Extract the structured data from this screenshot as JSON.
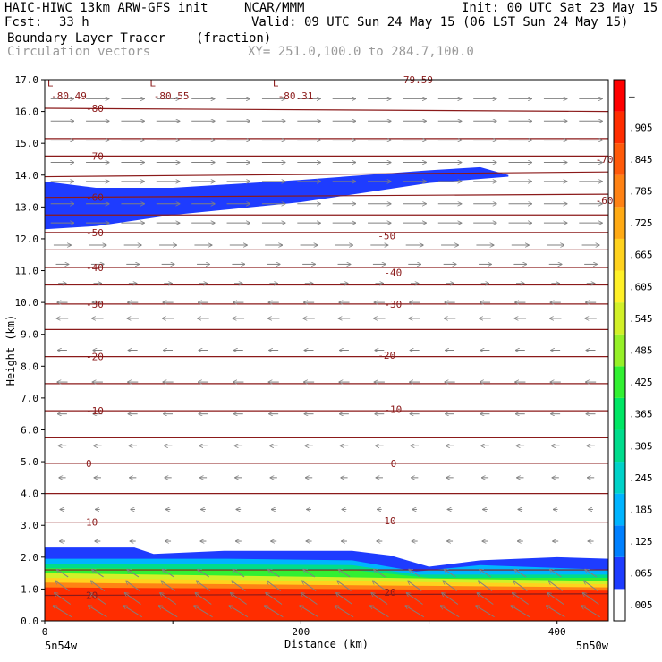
{
  "header": {
    "model": "HAIC-HIWC 13km ARW-GFS init",
    "org": "NCAR/MMM",
    "init": "Init: 00 UTC Sat 23 May 15",
    "fcst_label": "Fcst:",
    "fcst_value": "33 h",
    "valid": "Valid: 09 UTC Sun 24 May 15 (06 LST Sun 24 May 15)",
    "field": "Boundary Layer Tracer",
    "field_units": "(fraction)",
    "overlay": "Circulation vectors",
    "xsec": "XY= 251.0,100.0 to 284.7,100.0"
  },
  "chart_data": {
    "type": "heatmap",
    "xlabel": "Distance (km)",
    "ylabel": "Height (km)",
    "xlim": [
      0,
      440
    ],
    "ylim": [
      0,
      17
    ],
    "x_ticks": [
      "0",
      "200",
      "400"
    ],
    "y_ticks": [
      "0.0",
      "1.0",
      "2.0",
      "3.0",
      "4.0",
      "5.0",
      "6.0",
      "7.0",
      "8.0",
      "9.0",
      "10.0",
      "11.0",
      "12.0",
      "13.0",
      "14.0",
      "15.0",
      "16.0",
      "17.0"
    ],
    "left_endpoint": "5n54w",
    "right_endpoint": "5n50w",
    "colorbar": {
      "labels": [
        ".005",
        ".065",
        ".125",
        ".185",
        ".245",
        ".305",
        ".365",
        ".425",
        ".485",
        ".545",
        ".605",
        ".665",
        ".725",
        ".785",
        ".845",
        ".905",
        "–"
      ],
      "colors": [
        "#ffffff",
        "#1e3cff",
        "#0080ff",
        "#00b4ff",
        "#00d2c8",
        "#00dc8c",
        "#00e664",
        "#32f032",
        "#96f028",
        "#d2f028",
        "#fff028",
        "#ffd21e",
        "#ffaa14",
        "#ff8214",
        "#ff5a0a",
        "#ff2d00",
        "#ff0000"
      ]
    },
    "tracer_layers": [
      {
        "level": ".065",
        "color": "#1e3cff",
        "top": [
          [
            0,
            2.3
          ],
          [
            70,
            2.3
          ],
          [
            85,
            2.1
          ],
          [
            140,
            2.2
          ],
          [
            240,
            2.2
          ],
          [
            270,
            2.05
          ],
          [
            300,
            1.7
          ],
          [
            340,
            1.9
          ],
          [
            400,
            2.0
          ],
          [
            440,
            1.95
          ]
        ]
      },
      {
        "level": ".185",
        "color": "#00b4ff",
        "top": [
          [
            0,
            1.95
          ],
          [
            140,
            1.95
          ],
          [
            240,
            1.9
          ],
          [
            290,
            1.55
          ],
          [
            340,
            1.75
          ],
          [
            440,
            1.6
          ]
        ]
      },
      {
        "level": ".305",
        "color": "#00dc8c",
        "top": [
          [
            0,
            1.8
          ],
          [
            240,
            1.75
          ],
          [
            290,
            1.45
          ],
          [
            440,
            1.45
          ]
        ]
      },
      {
        "level": ".425",
        "color": "#32f032",
        "top": [
          [
            0,
            1.65
          ],
          [
            240,
            1.6
          ],
          [
            300,
            1.35
          ],
          [
            440,
            1.35
          ]
        ]
      },
      {
        "level": ".545",
        "color": "#d2f028",
        "top": [
          [
            0,
            1.5
          ],
          [
            440,
            1.25
          ]
        ]
      },
      {
        "level": ".665",
        "color": "#ffd21e",
        "top": [
          [
            0,
            1.35
          ],
          [
            440,
            1.15
          ]
        ]
      },
      {
        "level": ".785",
        "color": "#ff8214",
        "top": [
          [
            0,
            1.2
          ],
          [
            440,
            1.05
          ]
        ]
      },
      {
        "level": ".905",
        "color": "#ff2d00",
        "top": [
          [
            0,
            1.05
          ],
          [
            440,
            0.95
          ]
        ]
      }
    ],
    "upper_plume": {
      "level": ".065",
      "color": "#1e3cff",
      "top": [
        [
          0,
          13.8
        ],
        [
          40,
          13.6
        ],
        [
          100,
          13.6
        ],
        [
          200,
          13.85
        ],
        [
          300,
          14.15
        ],
        [
          340,
          14.25
        ],
        [
          362,
          14.0
        ]
      ],
      "bottom": [
        [
          362,
          13.95
        ],
        [
          300,
          13.75
        ],
        [
          200,
          13.15
        ],
        [
          100,
          12.75
        ],
        [
          40,
          12.4
        ],
        [
          0,
          12.3
        ]
      ]
    },
    "temperature_contours": [
      {
        "value": 20,
        "label": "20",
        "y": [
          0.8,
          0.85
        ]
      },
      {
        "value": 15,
        "y": [
          1.6,
          1.6
        ]
      },
      {
        "value": 10,
        "label": "10",
        "y": [
          3.1,
          3.1
        ]
      },
      {
        "value": 5,
        "y": [
          4.0,
          4.0
        ]
      },
      {
        "value": 0,
        "label": "0",
        "y": [
          4.95,
          4.95
        ]
      },
      {
        "value": -5,
        "y": [
          5.75,
          5.75
        ]
      },
      {
        "value": -10,
        "label": "-10",
        "y": [
          6.6,
          6.6
        ]
      },
      {
        "value": -15,
        "y": [
          7.45,
          7.45
        ]
      },
      {
        "value": -20,
        "label": "-20",
        "y": [
          8.3,
          8.3
        ]
      },
      {
        "value": -25,
        "y": [
          9.15,
          9.15
        ]
      },
      {
        "value": -30,
        "label": "-30",
        "y": [
          9.95,
          9.95
        ]
      },
      {
        "value": -35,
        "y": [
          10.55,
          10.55
        ]
      },
      {
        "value": -40,
        "label": "-40",
        "y": [
          11.1,
          11.1
        ]
      },
      {
        "value": -45,
        "y": [
          11.65,
          11.65
        ]
      },
      {
        "value": -50,
        "label": "-50",
        "y": [
          12.2,
          12.2
        ]
      },
      {
        "value": -55,
        "y": [
          12.75,
          12.75
        ]
      },
      {
        "value": -60,
        "label": "-60",
        "y": [
          13.3,
          13.4
        ]
      },
      {
        "value": -65,
        "y": [
          13.95,
          14.1
        ]
      },
      {
        "value": -70,
        "label": "-70",
        "y": [
          14.6,
          14.6
        ]
      },
      {
        "value": -75,
        "y": [
          15.15,
          15.15
        ]
      },
      {
        "value": -80,
        "label": "-80",
        "y": [
          16.1,
          16.0
        ]
      }
    ],
    "contour_labels_right": [
      {
        "label": "20",
        "x": 265,
        "y": 0.9
      },
      {
        "label": "10",
        "x": 265,
        "y": 3.15
      },
      {
        "label": "0",
        "x": 270,
        "y": 4.95
      },
      {
        "label": "-10",
        "x": 265,
        "y": 6.65
      },
      {
        "label": "-20",
        "x": 260,
        "y": 8.35
      },
      {
        "label": "-30",
        "x": 265,
        "y": 9.95
      },
      {
        "label": "-40",
        "x": 265,
        "y": 10.95
      },
      {
        "label": "-50",
        "x": 260,
        "y": 12.1
      },
      {
        "label": "-60",
        "x": 430,
        "y": 13.2
      },
      {
        "label": "-70",
        "x": 430,
        "y": 14.5
      }
    ],
    "minima_labels": [
      {
        "label": "L",
        "x": 2,
        "y": 16.9
      },
      {
        "label": "-80.49",
        "x": 5,
        "y": 16.5
      },
      {
        "label": "L",
        "x": 82,
        "y": 16.9
      },
      {
        "label": "-80.55",
        "x": 85,
        "y": 16.5
      },
      {
        "label": "L",
        "x": 178,
        "y": 16.9
      },
      {
        "label": "-80.31",
        "x": 182,
        "y": 16.5
      },
      {
        "label": "79.59",
        "x": 280,
        "y": 17.0
      }
    ],
    "wind_profile": [
      {
        "z": 0.3,
        "u": -0.8,
        "w": 0.9
      },
      {
        "z": 0.7,
        "u": -0.7,
        "w": 0.9
      },
      {
        "z": 1.1,
        "u": -0.6,
        "w": 0.8
      },
      {
        "z": 1.5,
        "u": -0.5,
        "w": 0.6
      },
      {
        "z": 2.5,
        "u": -0.25,
        "w": 0.0
      },
      {
        "z": 3.5,
        "u": -0.2,
        "w": 0.0
      },
      {
        "z": 4.5,
        "u": -0.3,
        "w": 0.0
      },
      {
        "z": 5.5,
        "u": -0.35,
        "w": 0.0
      },
      {
        "z": 6.5,
        "u": -0.4,
        "w": 0.0
      },
      {
        "z": 7.5,
        "u": -0.45,
        "w": 0.0
      },
      {
        "z": 8.5,
        "u": -0.4,
        "w": 0.0
      },
      {
        "z": 9.5,
        "u": -0.5,
        "w": 0.0
      },
      {
        "z": 10.0,
        "u": -0.45,
        "w": 0.0
      },
      {
        "z": 10.6,
        "u": 0.35,
        "w": 0.0
      },
      {
        "z": 11.2,
        "u": 0.55,
        "w": 0.0
      },
      {
        "z": 11.8,
        "u": 0.75,
        "w": 0.0
      },
      {
        "z": 12.5,
        "u": 1.0,
        "w": 0.0
      },
      {
        "z": 13.1,
        "u": 1.0,
        "w": 0.0
      },
      {
        "z": 13.8,
        "u": 1.0,
        "w": 0.0
      },
      {
        "z": 14.4,
        "u": 1.0,
        "w": 0.0
      },
      {
        "z": 15.1,
        "u": 1.0,
        "w": 0.0
      },
      {
        "z": 15.7,
        "u": 1.0,
        "w": 0.0
      },
      {
        "z": 16.4,
        "u": 1.0,
        "w": 0.0
      }
    ],
    "wind_columns": 16
  }
}
